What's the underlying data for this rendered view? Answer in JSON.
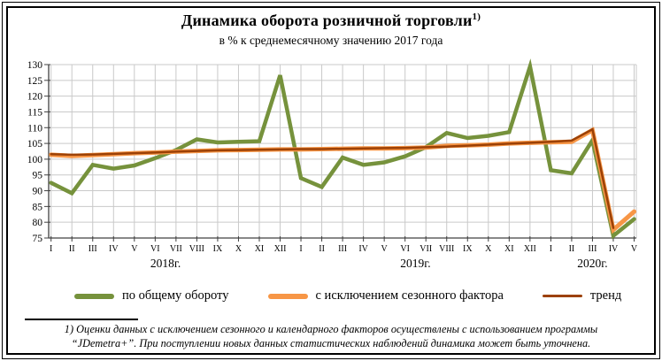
{
  "header": {
    "title": "Динамика оборота розничной торговли",
    "title_sup": "1)",
    "subtitle": "в % к среднемесячному значению 2017 года"
  },
  "chart_data": {
    "type": "line",
    "title": "Динамика оборота розничной торговли",
    "subtitle": "в % к среднемесячному значению 2017 года",
    "xlabel": "",
    "ylabel": "",
    "ylim": [
      75,
      130
    ],
    "ytick_step": 5,
    "grid": true,
    "legend_position": "bottom",
    "x_months": [
      "I",
      "II",
      "III",
      "IV",
      "V",
      "VI",
      "VII",
      "VIII",
      "IX",
      "X",
      "XI",
      "XII",
      "I",
      "II",
      "III",
      "IV",
      "V",
      "VI",
      "VII",
      "VIII",
      "IX",
      "X",
      "XI",
      "XII",
      "I",
      "II",
      "III",
      "IV",
      "V"
    ],
    "year_groups": [
      {
        "label": "2018г.",
        "start": 0,
        "end": 11
      },
      {
        "label": "2019г.",
        "start": 12,
        "end": 23
      },
      {
        "label": "2020г.",
        "start": 24,
        "end": 28
      }
    ],
    "series": [
      {
        "name": "по общему обороту",
        "color": "#76923C",
        "stroke_width": 4.5,
        "values": [
          92.5,
          89.2,
          98.2,
          97.0,
          98.0,
          100.3,
          102.9,
          106.3,
          105.3,
          105.5,
          105.7,
          126.6,
          94.0,
          91.2,
          100.5,
          98.2,
          99.0,
          100.9,
          103.8,
          108.3,
          106.7,
          107.4,
          108.6,
          129.4,
          96.5,
          95.5,
          106.0,
          75.7,
          81.0
        ]
      },
      {
        "name": "с исключением сезонного фактора",
        "color": "#F79646",
        "stroke_width": 5,
        "values": [
          101.4,
          101.0,
          101.3,
          101.6,
          101.9,
          102.1,
          102.4,
          102.6,
          102.8,
          102.9,
          103.0,
          103.1,
          103.1,
          103.2,
          103.3,
          103.4,
          103.4,
          103.5,
          103.7,
          104.2,
          104.4,
          104.6,
          105.0,
          105.2,
          105.4,
          105.5,
          109.2,
          77.6,
          83.4
        ]
      },
      {
        "name": "тренд",
        "color": "#9C4106",
        "stroke_width": 2.5,
        "values": [
          101.6,
          101.4,
          101.5,
          101.7,
          101.9,
          102.1,
          102.4,
          102.6,
          102.8,
          102.9,
          103.0,
          103.1,
          103.2,
          103.2,
          103.3,
          103.4,
          103.5,
          103.6,
          103.8,
          104.0,
          104.3,
          104.6,
          104.9,
          105.2,
          105.5,
          105.9,
          109.5,
          78.2
        ]
      }
    ]
  },
  "legend": {
    "items": [
      {
        "label": "по общему обороту",
        "color": "#76923C",
        "thickness": 6
      },
      {
        "label": "с исключением сезонного фактора",
        "color": "#F79646",
        "thickness": 6
      },
      {
        "label": "тренд",
        "color": "#9C4106",
        "thickness": 3
      }
    ]
  },
  "footnote": {
    "line1": "1) Оценки данных с исключением сезонного и календарного факторов осуществлены с использованием программы",
    "line2": "“JDemetra+”. При поступлении новых данных статистических наблюдений динамика может быть уточнена."
  }
}
